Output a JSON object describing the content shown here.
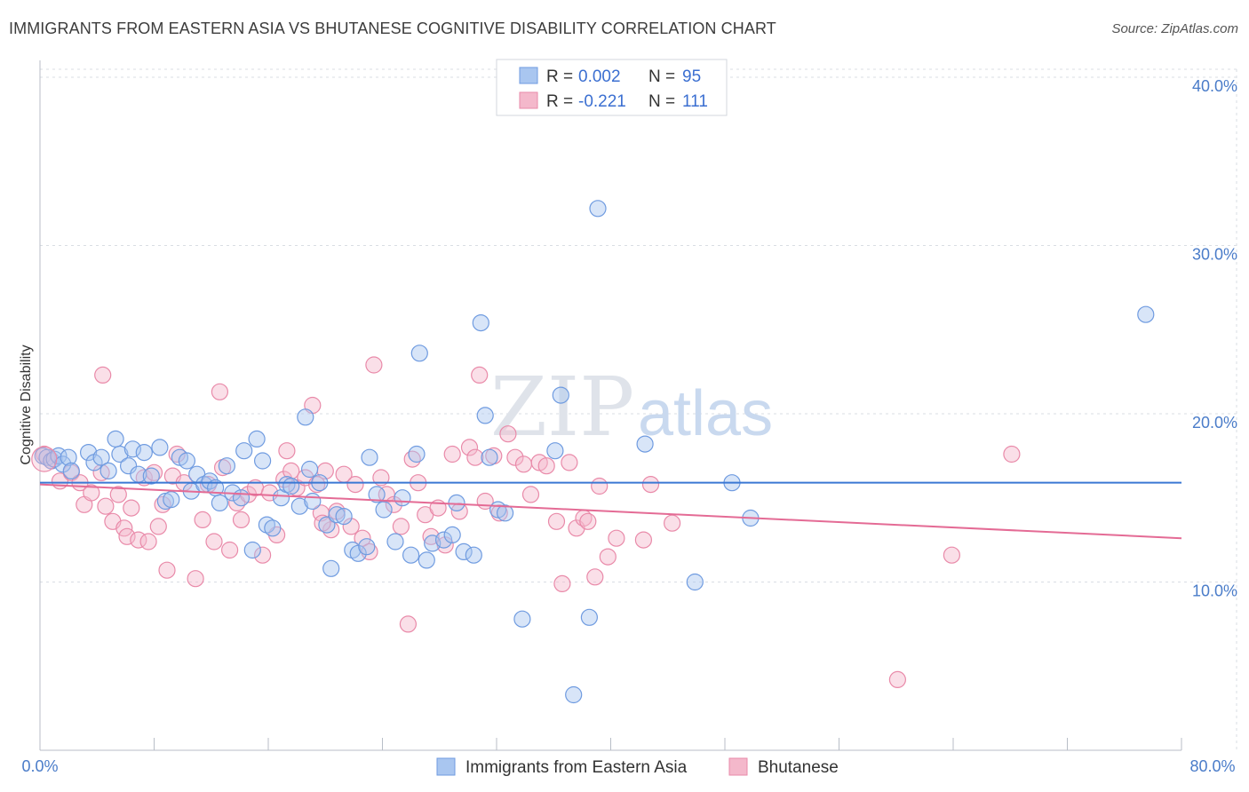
{
  "title": "IMMIGRANTS FROM EASTERN ASIA VS BHUTANESE COGNITIVE DISABILITY CORRELATION CHART",
  "source": "Source: ZipAtlas.com",
  "watermark": {
    "zip": "ZIP",
    "atlas": "atlas"
  },
  "colors": {
    "blue_fill": "#a9c6f0",
    "blue_stroke": "#6f9be0",
    "blue_line": "#3a78d4",
    "pink_fill": "#f4b8cb",
    "pink_stroke": "#e98aa9",
    "pink_line": "#e46b95",
    "grid": "#d9dde3",
    "tick_text": "#4a7cc9"
  },
  "legend": {
    "rows": [
      {
        "r_label": "R =",
        "r_value": "0.002",
        "n_label": "N =",
        "n_value": "95"
      },
      {
        "r_label": "R =",
        "r_value": "-0.221",
        "n_label": "N =",
        "n_value": "111"
      }
    ]
  },
  "bottom_legend": [
    "Immigrants from Eastern Asia",
    "Bhutanese"
  ],
  "chart_data": {
    "type": "scatter",
    "xlabel": "",
    "ylabel": "Cognitive Disability",
    "xlim": [
      0,
      80
    ],
    "ylim": [
      0,
      41
    ],
    "x_tick_labels": [
      "0.0%",
      "80.0%"
    ],
    "y_ticks": [
      10,
      20,
      30,
      40
    ],
    "y_tick_labels": [
      "10.0%",
      "20.0%",
      "30.0%",
      "40.0%"
    ],
    "grid": true,
    "legend_placement": "top-center",
    "series": [
      {
        "name": "Immigrants from Eastern Asia",
        "trend": {
          "x": [
            0,
            80
          ],
          "y": [
            15.9,
            15.9
          ]
        },
        "points": [
          [
            0.2,
            17.5
          ],
          [
            0.5,
            17.4
          ],
          [
            0.8,
            17.2
          ],
          [
            1.0,
            17.3
          ],
          [
            1.3,
            17.5
          ],
          [
            1.6,
            17.0
          ],
          [
            2.0,
            17.4
          ],
          [
            2.2,
            16.6
          ],
          [
            3.4,
            17.7
          ],
          [
            3.8,
            17.1
          ],
          [
            4.3,
            17.4
          ],
          [
            4.8,
            16.6
          ],
          [
            5.3,
            18.5
          ],
          [
            5.6,
            17.6
          ],
          [
            6.2,
            16.9
          ],
          [
            6.5,
            17.9
          ],
          [
            6.9,
            16.4
          ],
          [
            7.3,
            17.7
          ],
          [
            7.8,
            16.3
          ],
          [
            8.4,
            18.0
          ],
          [
            8.8,
            14.8
          ],
          [
            9.2,
            14.9
          ],
          [
            9.8,
            17.4
          ],
          [
            10.3,
            17.2
          ],
          [
            10.6,
            15.4
          ],
          [
            11.0,
            16.4
          ],
          [
            11.5,
            15.8
          ],
          [
            11.9,
            16.0
          ],
          [
            12.3,
            15.6
          ],
          [
            12.6,
            14.7
          ],
          [
            13.1,
            16.9
          ],
          [
            13.5,
            15.3
          ],
          [
            14.1,
            15.0
          ],
          [
            14.3,
            17.8
          ],
          [
            14.9,
            11.9
          ],
          [
            15.2,
            18.5
          ],
          [
            15.6,
            17.2
          ],
          [
            15.9,
            13.4
          ],
          [
            16.3,
            13.2
          ],
          [
            16.9,
            15.0
          ],
          [
            17.3,
            15.8
          ],
          [
            17.6,
            15.7
          ],
          [
            18.2,
            14.5
          ],
          [
            18.6,
            19.8
          ],
          [
            18.9,
            16.7
          ],
          [
            19.1,
            14.8
          ],
          [
            19.6,
            15.9
          ],
          [
            20.1,
            13.4
          ],
          [
            20.4,
            10.8
          ],
          [
            20.8,
            14.0
          ],
          [
            21.3,
            13.9
          ],
          [
            21.9,
            11.9
          ],
          [
            22.3,
            11.7
          ],
          [
            22.9,
            12.1
          ],
          [
            23.1,
            17.4
          ],
          [
            23.6,
            15.2
          ],
          [
            24.1,
            14.3
          ],
          [
            24.9,
            12.4
          ],
          [
            25.4,
            15.0
          ],
          [
            26.0,
            11.6
          ],
          [
            26.4,
            17.6
          ],
          [
            26.6,
            23.6
          ],
          [
            27.1,
            11.3
          ],
          [
            27.5,
            12.3
          ],
          [
            28.3,
            12.5
          ],
          [
            28.9,
            12.8
          ],
          [
            29.2,
            14.7
          ],
          [
            29.7,
            11.8
          ],
          [
            30.4,
            11.6
          ],
          [
            30.9,
            25.4
          ],
          [
            31.2,
            19.9
          ],
          [
            31.5,
            17.4
          ],
          [
            32.1,
            14.3
          ],
          [
            32.6,
            14.1
          ],
          [
            33.8,
            7.8
          ],
          [
            36.1,
            17.8
          ],
          [
            36.5,
            21.1
          ],
          [
            37.4,
            3.3
          ],
          [
            38.5,
            7.9
          ],
          [
            39.1,
            32.2
          ],
          [
            42.4,
            18.2
          ],
          [
            45.9,
            10.0
          ],
          [
            48.5,
            15.9
          ],
          [
            49.8,
            13.8
          ],
          [
            77.5,
            25.9
          ]
        ]
      },
      {
        "name": "Bhutanese",
        "trend": {
          "x": [
            0,
            80
          ],
          "y": [
            15.8,
            12.6
          ]
        },
        "points": [
          [
            0.3,
            17.6
          ],
          [
            0.8,
            17.2
          ],
          [
            1.4,
            16.0
          ],
          [
            2.2,
            16.5
          ],
          [
            2.8,
            15.9
          ],
          [
            3.1,
            14.6
          ],
          [
            3.6,
            15.3
          ],
          [
            4.3,
            16.5
          ],
          [
            4.4,
            22.3
          ],
          [
            4.6,
            14.5
          ],
          [
            5.1,
            13.6
          ],
          [
            5.5,
            15.2
          ],
          [
            5.9,
            13.2
          ],
          [
            6.1,
            12.7
          ],
          [
            6.4,
            14.4
          ],
          [
            6.9,
            12.5
          ],
          [
            7.3,
            16.2
          ],
          [
            7.6,
            12.4
          ],
          [
            8.0,
            16.5
          ],
          [
            8.3,
            13.3
          ],
          [
            8.6,
            14.6
          ],
          [
            8.9,
            10.7
          ],
          [
            9.3,
            16.3
          ],
          [
            9.6,
            17.6
          ],
          [
            10.1,
            15.9
          ],
          [
            10.9,
            10.2
          ],
          [
            11.4,
            13.7
          ],
          [
            11.8,
            15.8
          ],
          [
            12.2,
            12.4
          ],
          [
            12.6,
            21.3
          ],
          [
            12.8,
            16.8
          ],
          [
            13.3,
            11.9
          ],
          [
            13.8,
            14.7
          ],
          [
            14.1,
            13.7
          ],
          [
            14.6,
            15.2
          ],
          [
            15.1,
            15.6
          ],
          [
            15.6,
            11.6
          ],
          [
            16.1,
            15.3
          ],
          [
            16.6,
            12.8
          ],
          [
            17.1,
            16.1
          ],
          [
            17.3,
            17.8
          ],
          [
            17.6,
            16.6
          ],
          [
            18.0,
            15.6
          ],
          [
            18.6,
            16.2
          ],
          [
            19.1,
            20.5
          ],
          [
            19.4,
            15.8
          ],
          [
            19.7,
            14.1
          ],
          [
            20.0,
            16.6
          ],
          [
            20.4,
            13.1
          ],
          [
            20.8,
            14.2
          ],
          [
            21.3,
            16.4
          ],
          [
            21.8,
            13.3
          ],
          [
            22.1,
            15.8
          ],
          [
            22.6,
            12.6
          ],
          [
            23.1,
            11.8
          ],
          [
            23.4,
            22.9
          ],
          [
            23.9,
            16.2
          ],
          [
            24.3,
            15.2
          ],
          [
            24.8,
            14.6
          ],
          [
            25.3,
            13.3
          ],
          [
            25.8,
            7.5
          ],
          [
            26.1,
            17.3
          ],
          [
            26.5,
            15.9
          ],
          [
            27.0,
            14.0
          ],
          [
            27.4,
            12.7
          ],
          [
            27.9,
            14.4
          ],
          [
            28.4,
            12.2
          ],
          [
            28.9,
            17.6
          ],
          [
            29.4,
            14.2
          ],
          [
            30.1,
            18.0
          ],
          [
            30.5,
            17.4
          ],
          [
            30.8,
            22.3
          ],
          [
            31.2,
            14.8
          ],
          [
            31.8,
            17.5
          ],
          [
            32.2,
            14.1
          ],
          [
            32.8,
            18.8
          ],
          [
            33.3,
            17.4
          ],
          [
            33.9,
            17.0
          ],
          [
            34.4,
            15.2
          ],
          [
            35.0,
            17.1
          ],
          [
            35.5,
            16.9
          ],
          [
            36.2,
            13.6
          ],
          [
            36.6,
            9.9
          ],
          [
            37.1,
            17.1
          ],
          [
            37.6,
            13.2
          ],
          [
            38.1,
            13.8
          ],
          [
            38.4,
            13.6
          ],
          [
            38.9,
            10.3
          ],
          [
            39.2,
            15.7
          ],
          [
            39.8,
            11.5
          ],
          [
            40.4,
            12.6
          ],
          [
            42.3,
            12.5
          ],
          [
            42.8,
            15.8
          ],
          [
            44.3,
            13.5
          ],
          [
            60.1,
            4.2
          ],
          [
            63.9,
            11.6
          ],
          [
            68.1,
            17.6
          ],
          [
            19.8,
            13.5
          ]
        ]
      }
    ]
  }
}
